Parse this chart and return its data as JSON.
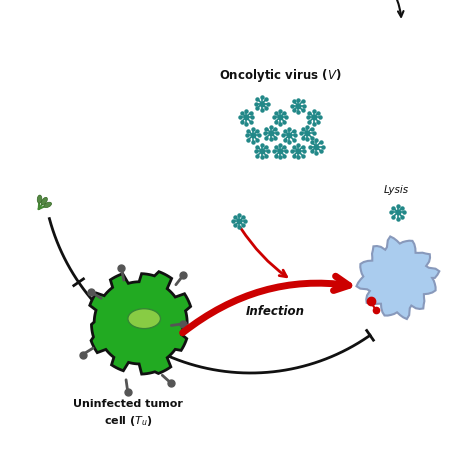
{
  "bg_color": "#ffffff",
  "tumor_cell_color": "#22aa22",
  "tumor_cell_outline": "#111111",
  "nucleus_color": "#88cc44",
  "receptor_color": "#555555",
  "infected_cell_color": "#aaccee",
  "infected_cell_outline": "#8899bb",
  "virus_color": "#228888",
  "arrow_infection_color": "#cc0000",
  "arrow_line_color": "#111111",
  "lysis_text": "Lysis",
  "infection_text": "Infection",
  "virus_label": "Oncolytic virus ($V$)",
  "tumor_label_line1": "Uninfected tumor",
  "tumor_label_line2": "cell ($T_u$)"
}
